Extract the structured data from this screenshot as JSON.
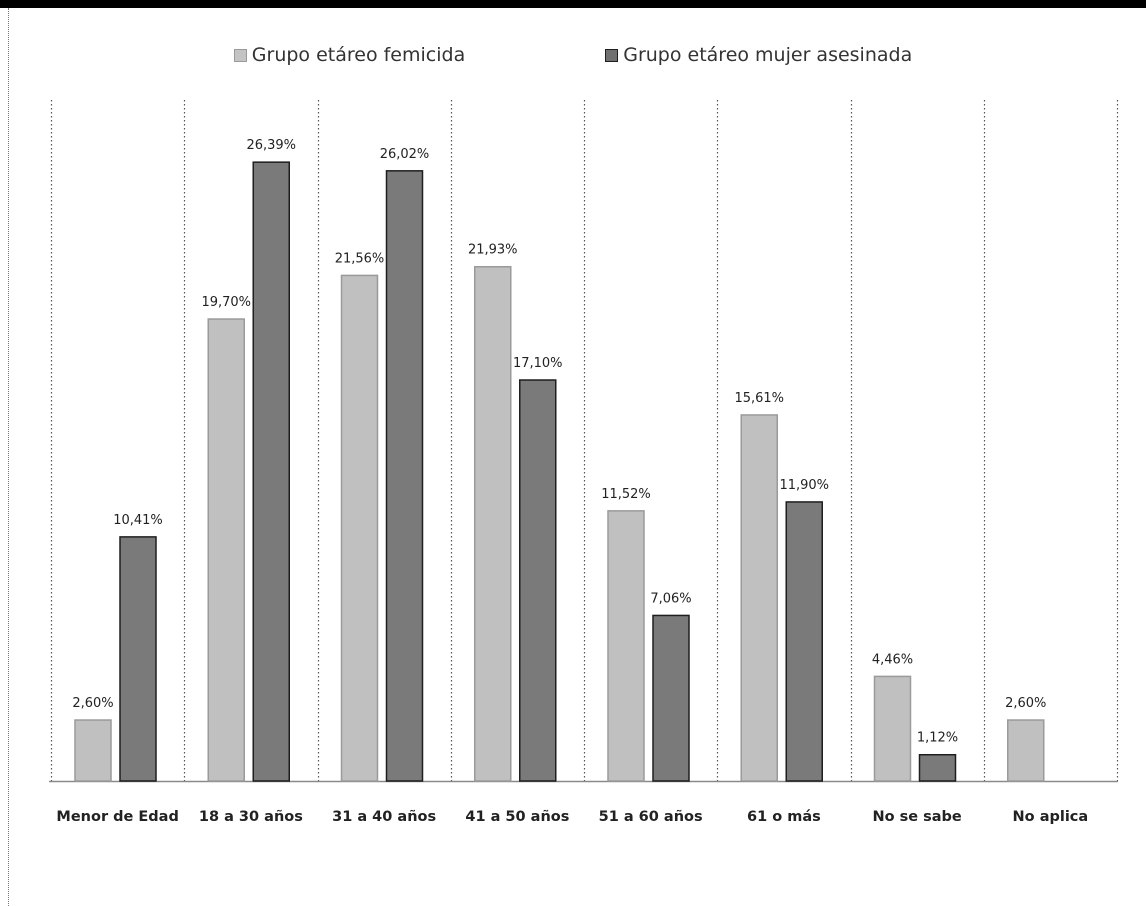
{
  "colors": {
    "light": "#c0c0c0",
    "light_stroke": "#9a9a9a",
    "dark": "#7a7a7a",
    "dark_stroke": "#1e1e1e"
  },
  "chart_data": {
    "type": "bar",
    "title": "",
    "xlabel": "",
    "ylabel": "",
    "ylim": [
      0,
      30
    ],
    "grid": "vertical dotted separators between categories",
    "legend": "top-center",
    "categories": [
      "Menor de Edad",
      "18 a 30 años",
      "31 a 40 años",
      "41 a 50 años",
      "51 a 60 años",
      "61 o más",
      "No se sabe",
      "No aplica"
    ],
    "series": [
      {
        "name": "Grupo etáreo femicida",
        "color": "#c0c0c0",
        "values": [
          2.6,
          19.7,
          21.56,
          21.93,
          11.52,
          15.61,
          4.46,
          2.6
        ],
        "labels": [
          "2,60%",
          "19,70%",
          "21,56%",
          "21,93%",
          "11,52%",
          "15,61%",
          "4,46%",
          "2,60%"
        ]
      },
      {
        "name": "Grupo etáreo mujer asesinada",
        "color": "#7a7a7a",
        "values": [
          10.41,
          26.39,
          26.02,
          17.1,
          7.06,
          11.9,
          1.12,
          null
        ],
        "labels": [
          "10,41%",
          "26,39%",
          "26,02%",
          "17,10%",
          "7,06%",
          "11,90%",
          "1,12%",
          ""
        ]
      }
    ]
  }
}
